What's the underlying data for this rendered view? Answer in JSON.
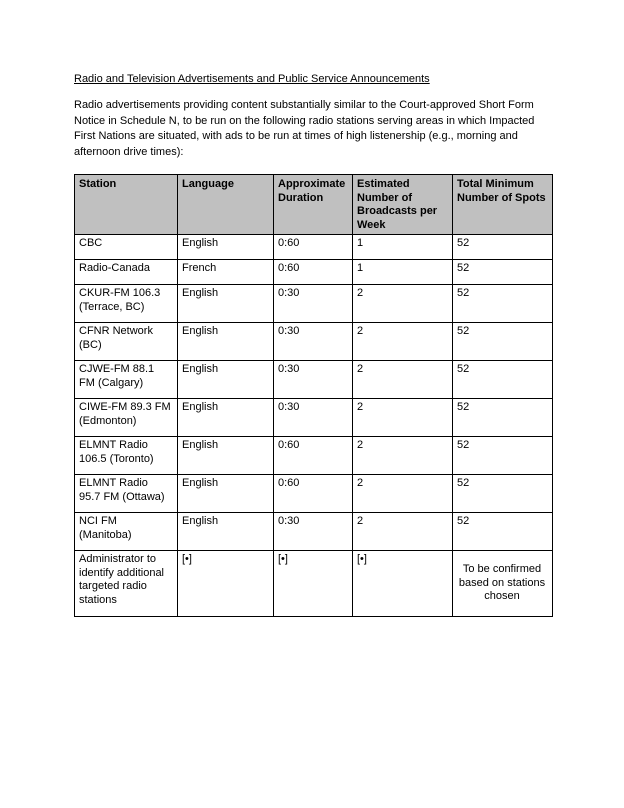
{
  "document": {
    "title": "Radio and Television Advertisements and Public Service Announcements",
    "intro": "Radio advertisements providing content substantially similar to the Court-approved Short Form Notice in Schedule N, to be run on the following radio stations serving areas in which Impacted First Nations are situated, with ads to be run at times of high listenership (e.g., morning and afternoon drive times):"
  },
  "colors": {
    "header_background": "#c0c0c0",
    "table_border": "#000000",
    "text": "#000000",
    "page_background": "#ffffff"
  },
  "table": {
    "columns": [
      "Station",
      "Language",
      "Approximate Duration",
      "Estimated Number of Broadcasts per Week",
      "Total Minimum Number of Spots"
    ],
    "rows": [
      [
        "CBC",
        "English",
        "0:60",
        "1",
        "52"
      ],
      [
        "Radio-Canada",
        "French",
        "0:60",
        "1",
        "52"
      ],
      [
        "CKUR-FM 106.3 (Terrace, BC)",
        "English",
        "0:30",
        "2",
        "52"
      ],
      [
        "CFNR Network (BC)",
        "English",
        "0:30",
        "2",
        "52"
      ],
      [
        "CJWE-FM 88.1 FM (Calgary)",
        "English",
        "0:30",
        "2",
        "52"
      ],
      [
        "CIWE-FM 89.3 FM (Edmonton)",
        "English",
        "0:30",
        "2",
        "52"
      ],
      [
        "ELMNT Radio 106.5 (Toronto)",
        "English",
        "0:60",
        "2",
        "52"
      ],
      [
        "ELMNT Radio 95.7 FM (Ottawa)",
        "English",
        "0:60",
        "2",
        "52"
      ],
      [
        "NCI FM (Manitoba)",
        "English",
        "0:30",
        "2",
        "52"
      ],
      [
        "Administrator to identify additional targeted radio stations",
        "[•]",
        "[•]",
        "[•]",
        "To be confirmed based on stations chosen"
      ]
    ]
  }
}
